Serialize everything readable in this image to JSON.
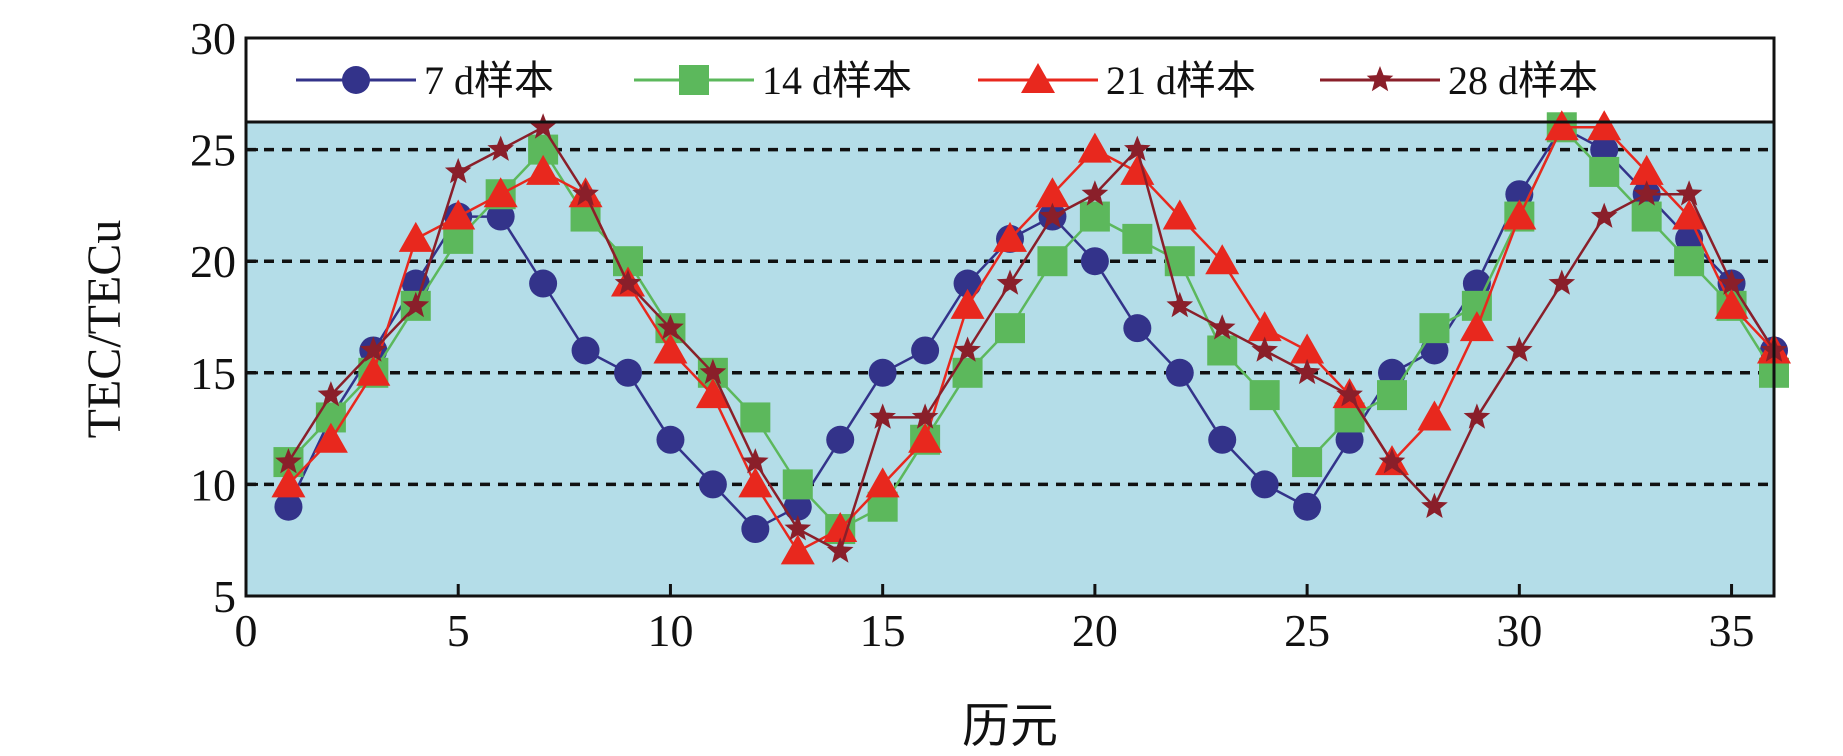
{
  "chart_data": {
    "type": "line",
    "xlabel": "历元",
    "ylabel": "TEC/TECu",
    "xlim": [
      0,
      36
    ],
    "ylim": [
      5,
      30
    ],
    "xticks": [
      0,
      5,
      10,
      15,
      20,
      25,
      30,
      35
    ],
    "yticks": [
      5,
      10,
      15,
      20,
      25,
      30
    ],
    "grid": "horizontal dashed at 10, 15, 20, 25",
    "legend_position": "top",
    "plot_background": "#b4dde8",
    "x": [
      1,
      2,
      3,
      4,
      5,
      6,
      7,
      8,
      9,
      10,
      11,
      12,
      13,
      14,
      15,
      16,
      17,
      18,
      19,
      20,
      21,
      22,
      23,
      24,
      25,
      26,
      27,
      28,
      29,
      30,
      31,
      32,
      33,
      34,
      35,
      36
    ],
    "series": [
      {
        "name": "7 d样本",
        "color": "#33338a",
        "marker": "circle",
        "values": [
          9,
          13,
          16,
          19,
          22,
          22,
          19,
          16,
          15,
          12,
          10,
          8,
          9,
          12,
          15,
          16,
          19,
          21,
          22,
          20,
          17,
          15,
          12,
          10,
          9,
          12,
          15,
          16,
          19,
          23,
          26,
          25,
          23,
          21,
          19,
          16
        ]
      },
      {
        "name": "14 d样本",
        "color": "#5cb85c",
        "marker": "square",
        "values": [
          11,
          13,
          15,
          18,
          21,
          23,
          25,
          22,
          20,
          17,
          15,
          13,
          10,
          8,
          9,
          12,
          15,
          17,
          20,
          22,
          21,
          20,
          16,
          14,
          11,
          13,
          14,
          17,
          18,
          22,
          26,
          24,
          22,
          20,
          18,
          15
        ]
      },
      {
        "name": "21 d样本",
        "color": "#e8281e",
        "marker": "triangle",
        "values": [
          10,
          12,
          15,
          21,
          22,
          23,
          24,
          23,
          19,
          16,
          14,
          10,
          7,
          8,
          10,
          12,
          18,
          21,
          23,
          25,
          24,
          22,
          20,
          17,
          16,
          14,
          11,
          13,
          17,
          22,
          26,
          26,
          24,
          22,
          18,
          16
        ]
      },
      {
        "name": "28 d样本",
        "color": "#8a1f2a",
        "marker": "star",
        "values": [
          11,
          14,
          16,
          18,
          24,
          25,
          26,
          23,
          19,
          17,
          15,
          11,
          8,
          7,
          13,
          13,
          16,
          19,
          22,
          23,
          25,
          18,
          17,
          16,
          15,
          14,
          11,
          9,
          13,
          16,
          19,
          22,
          23,
          23,
          19,
          16
        ]
      }
    ]
  }
}
